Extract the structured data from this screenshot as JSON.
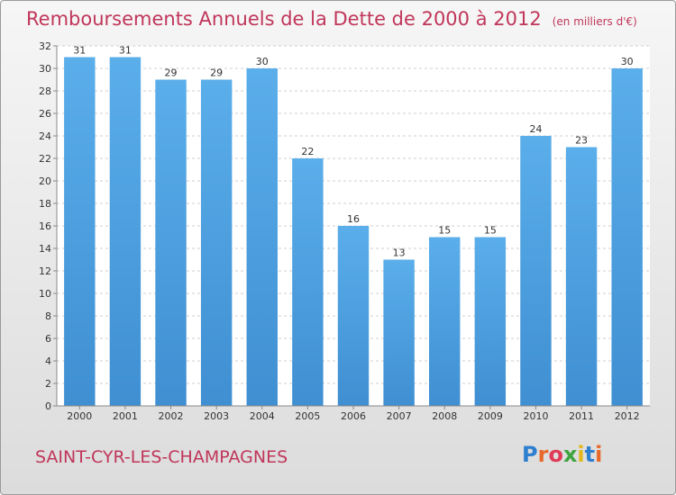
{
  "header": {
    "title": "Remboursements Annuels de la Dette de 2000 à 2012",
    "unit": "(en milliers d'€)"
  },
  "footer": {
    "place_name": "SAINT-CYR-LES-CHAMPAGNES",
    "brand_letters": [
      "P",
      "r",
      "o",
      "x",
      "i",
      "t",
      "i"
    ],
    "brand_colors": [
      "#2f7fd0",
      "#e8692a",
      "#e03a57",
      "#3fa33f",
      "#e2b81d",
      "#2f7fd0",
      "#e8692a"
    ]
  },
  "colors": {
    "bar": "#3f8fd2",
    "bar_light": "#5aaeea",
    "title": "#c0365a"
  },
  "chart_data": {
    "type": "bar",
    "categories": [
      "2000",
      "2001",
      "2002",
      "2003",
      "2004",
      "2005",
      "2006",
      "2007",
      "2008",
      "2009",
      "2010",
      "2011",
      "2012"
    ],
    "values": [
      31,
      31,
      29,
      29,
      30,
      22,
      16,
      13,
      15,
      15,
      24,
      23,
      30
    ],
    "data_labels": [
      "31",
      "31",
      "29",
      "29",
      "30",
      "22",
      "16",
      "13",
      "15",
      "15",
      "24",
      "23",
      "30"
    ],
    "yticks": [
      0,
      2,
      4,
      6,
      8,
      10,
      12,
      14,
      16,
      18,
      20,
      22,
      24,
      26,
      28,
      30,
      32
    ],
    "ylim": [
      0,
      32
    ],
    "grid": true
  }
}
